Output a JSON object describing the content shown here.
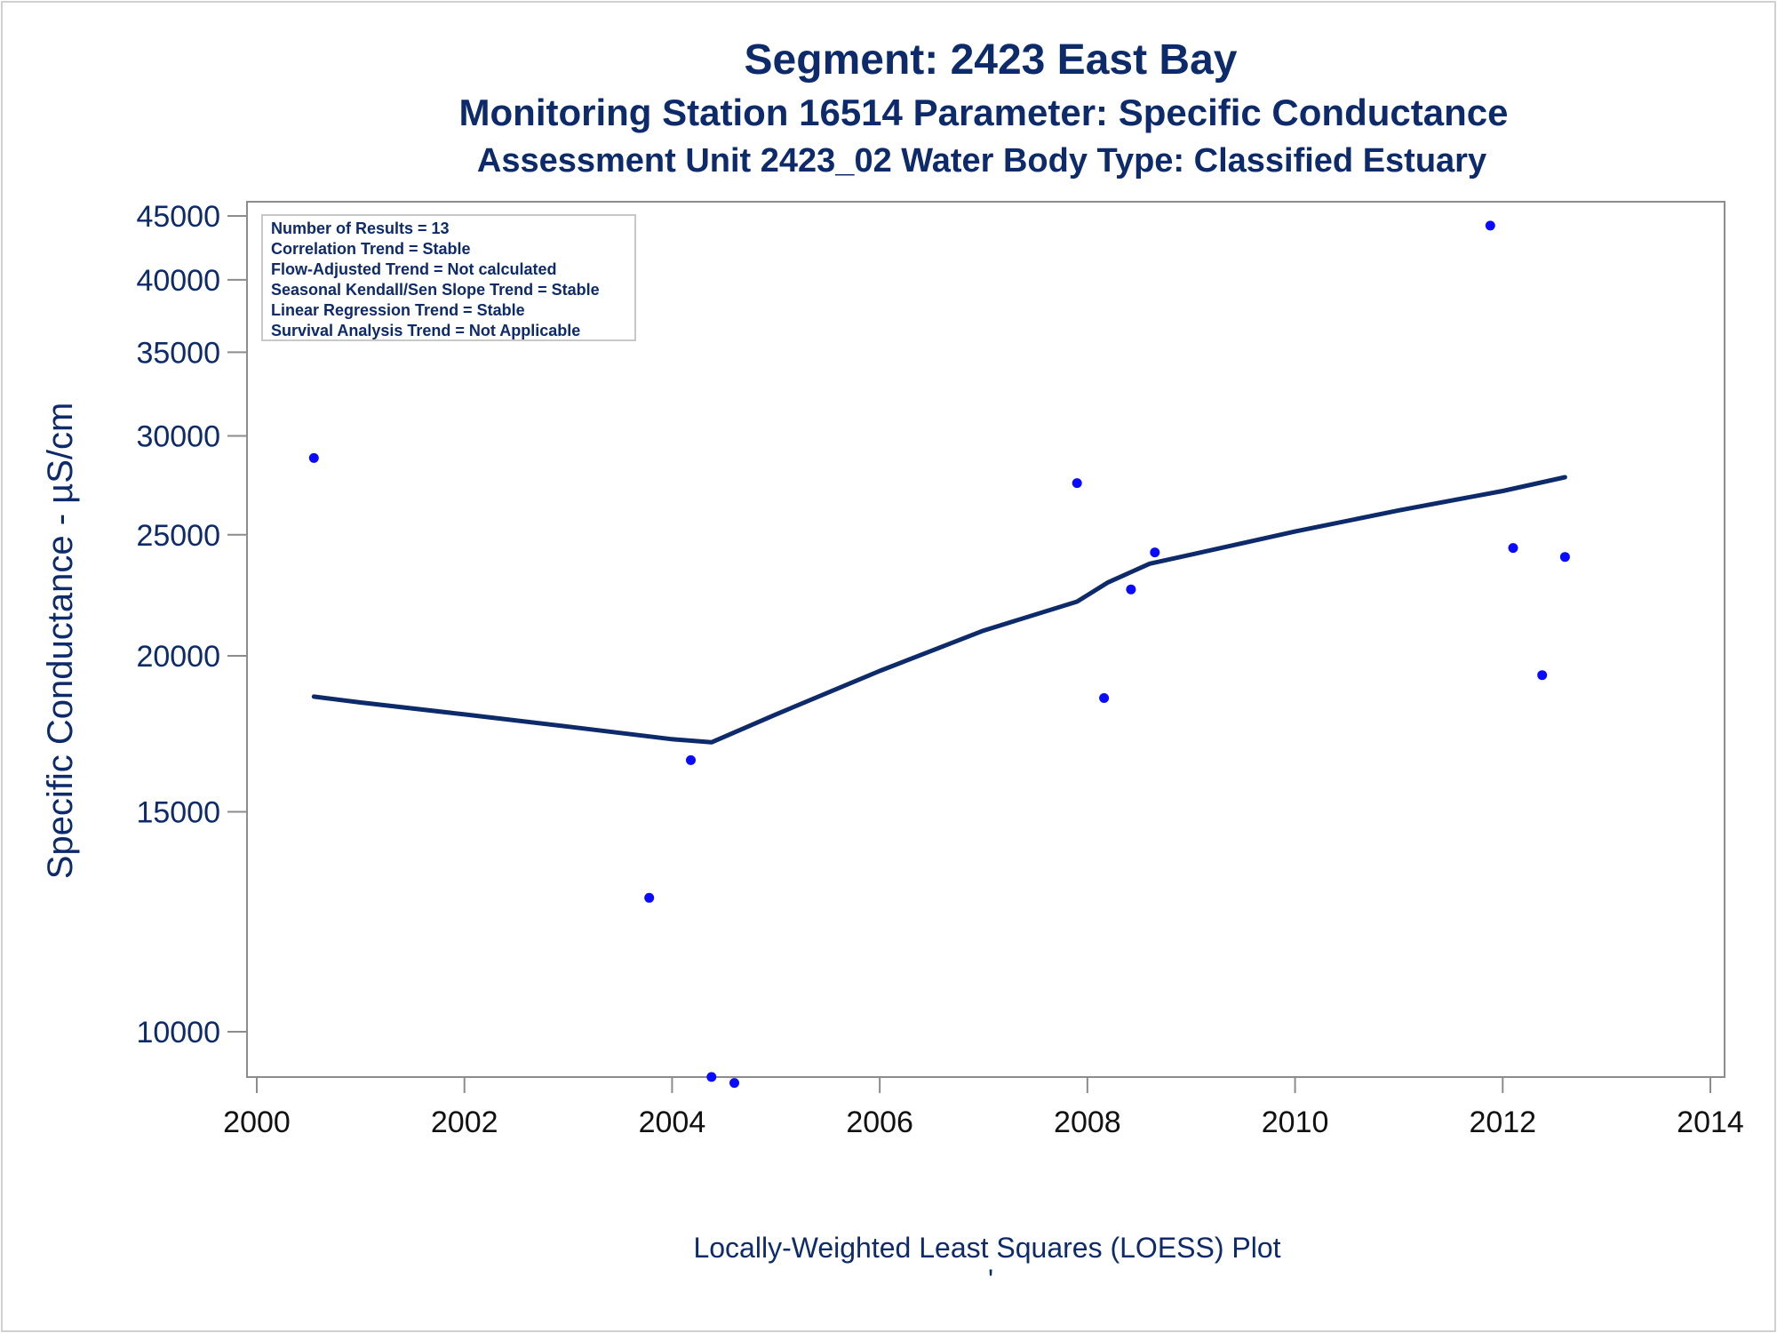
{
  "chart_data": {
    "type": "scatter",
    "title": "Segment: 2423  East Bay",
    "subtitle": "Monitoring Station 16514 Parameter: Specific Conductance",
    "subtitle2": "Assessment Unit 2423_02   Water Body Type: Classified Estuary",
    "ylabel": "Specific Conductance -  µS/cm",
    "xlabel": "Locally-Weighted Least Squares (LOESS) Plot",
    "footnote": "'",
    "y_scale": "log",
    "xlim": [
      2000,
      2014
    ],
    "ylim": [
      8800,
      46000
    ],
    "x_ticks": [
      2000,
      2002,
      2004,
      2006,
      2008,
      2010,
      2012,
      2014
    ],
    "y_ticks": [
      10000,
      15000,
      20000,
      25000,
      30000,
      35000,
      40000,
      45000
    ],
    "grid": false,
    "legend": "none",
    "inset_box": {
      "position": "top-left",
      "lines": [
        "Number of Results = 13",
        "Correlation Trend = Stable",
        "Flow-Adjusted Trend = Not calculated",
        "Seasonal Kendall/Sen Slope Trend = Stable",
        "Linear Regression Trend = Stable",
        "Survival Analysis Trend = Not Applicable"
      ]
    },
    "series": [
      {
        "type": "scatter",
        "color": "#0a0aff",
        "points": [
          [
            2000.55,
            28800
          ],
          [
            2003.78,
            12800
          ],
          [
            2004.18,
            16500
          ],
          [
            2004.38,
            9200
          ],
          [
            2004.6,
            9100
          ],
          [
            2007.9,
            27500
          ],
          [
            2008.16,
            18500
          ],
          [
            2008.42,
            22600
          ],
          [
            2008.65,
            24200
          ],
          [
            2011.88,
            44200
          ],
          [
            2012.1,
            24400
          ],
          [
            2012.38,
            19300
          ],
          [
            2012.6,
            24000
          ]
        ]
      },
      {
        "type": "line",
        "color": "#0d2a6b",
        "points": [
          [
            2000.55,
            18550
          ],
          [
            2001.0,
            18350
          ],
          [
            2002.0,
            17950
          ],
          [
            2003.0,
            17550
          ],
          [
            2004.0,
            17150
          ],
          [
            2004.38,
            17050
          ],
          [
            2005.0,
            17950
          ],
          [
            2006.0,
            19450
          ],
          [
            2007.0,
            20950
          ],
          [
            2007.9,
            22100
          ],
          [
            2008.2,
            22900
          ],
          [
            2008.6,
            23700
          ],
          [
            2009.0,
            24100
          ],
          [
            2010.0,
            25150
          ],
          [
            2011.0,
            26150
          ],
          [
            2012.0,
            27100
          ],
          [
            2012.6,
            27800
          ]
        ]
      }
    ]
  }
}
